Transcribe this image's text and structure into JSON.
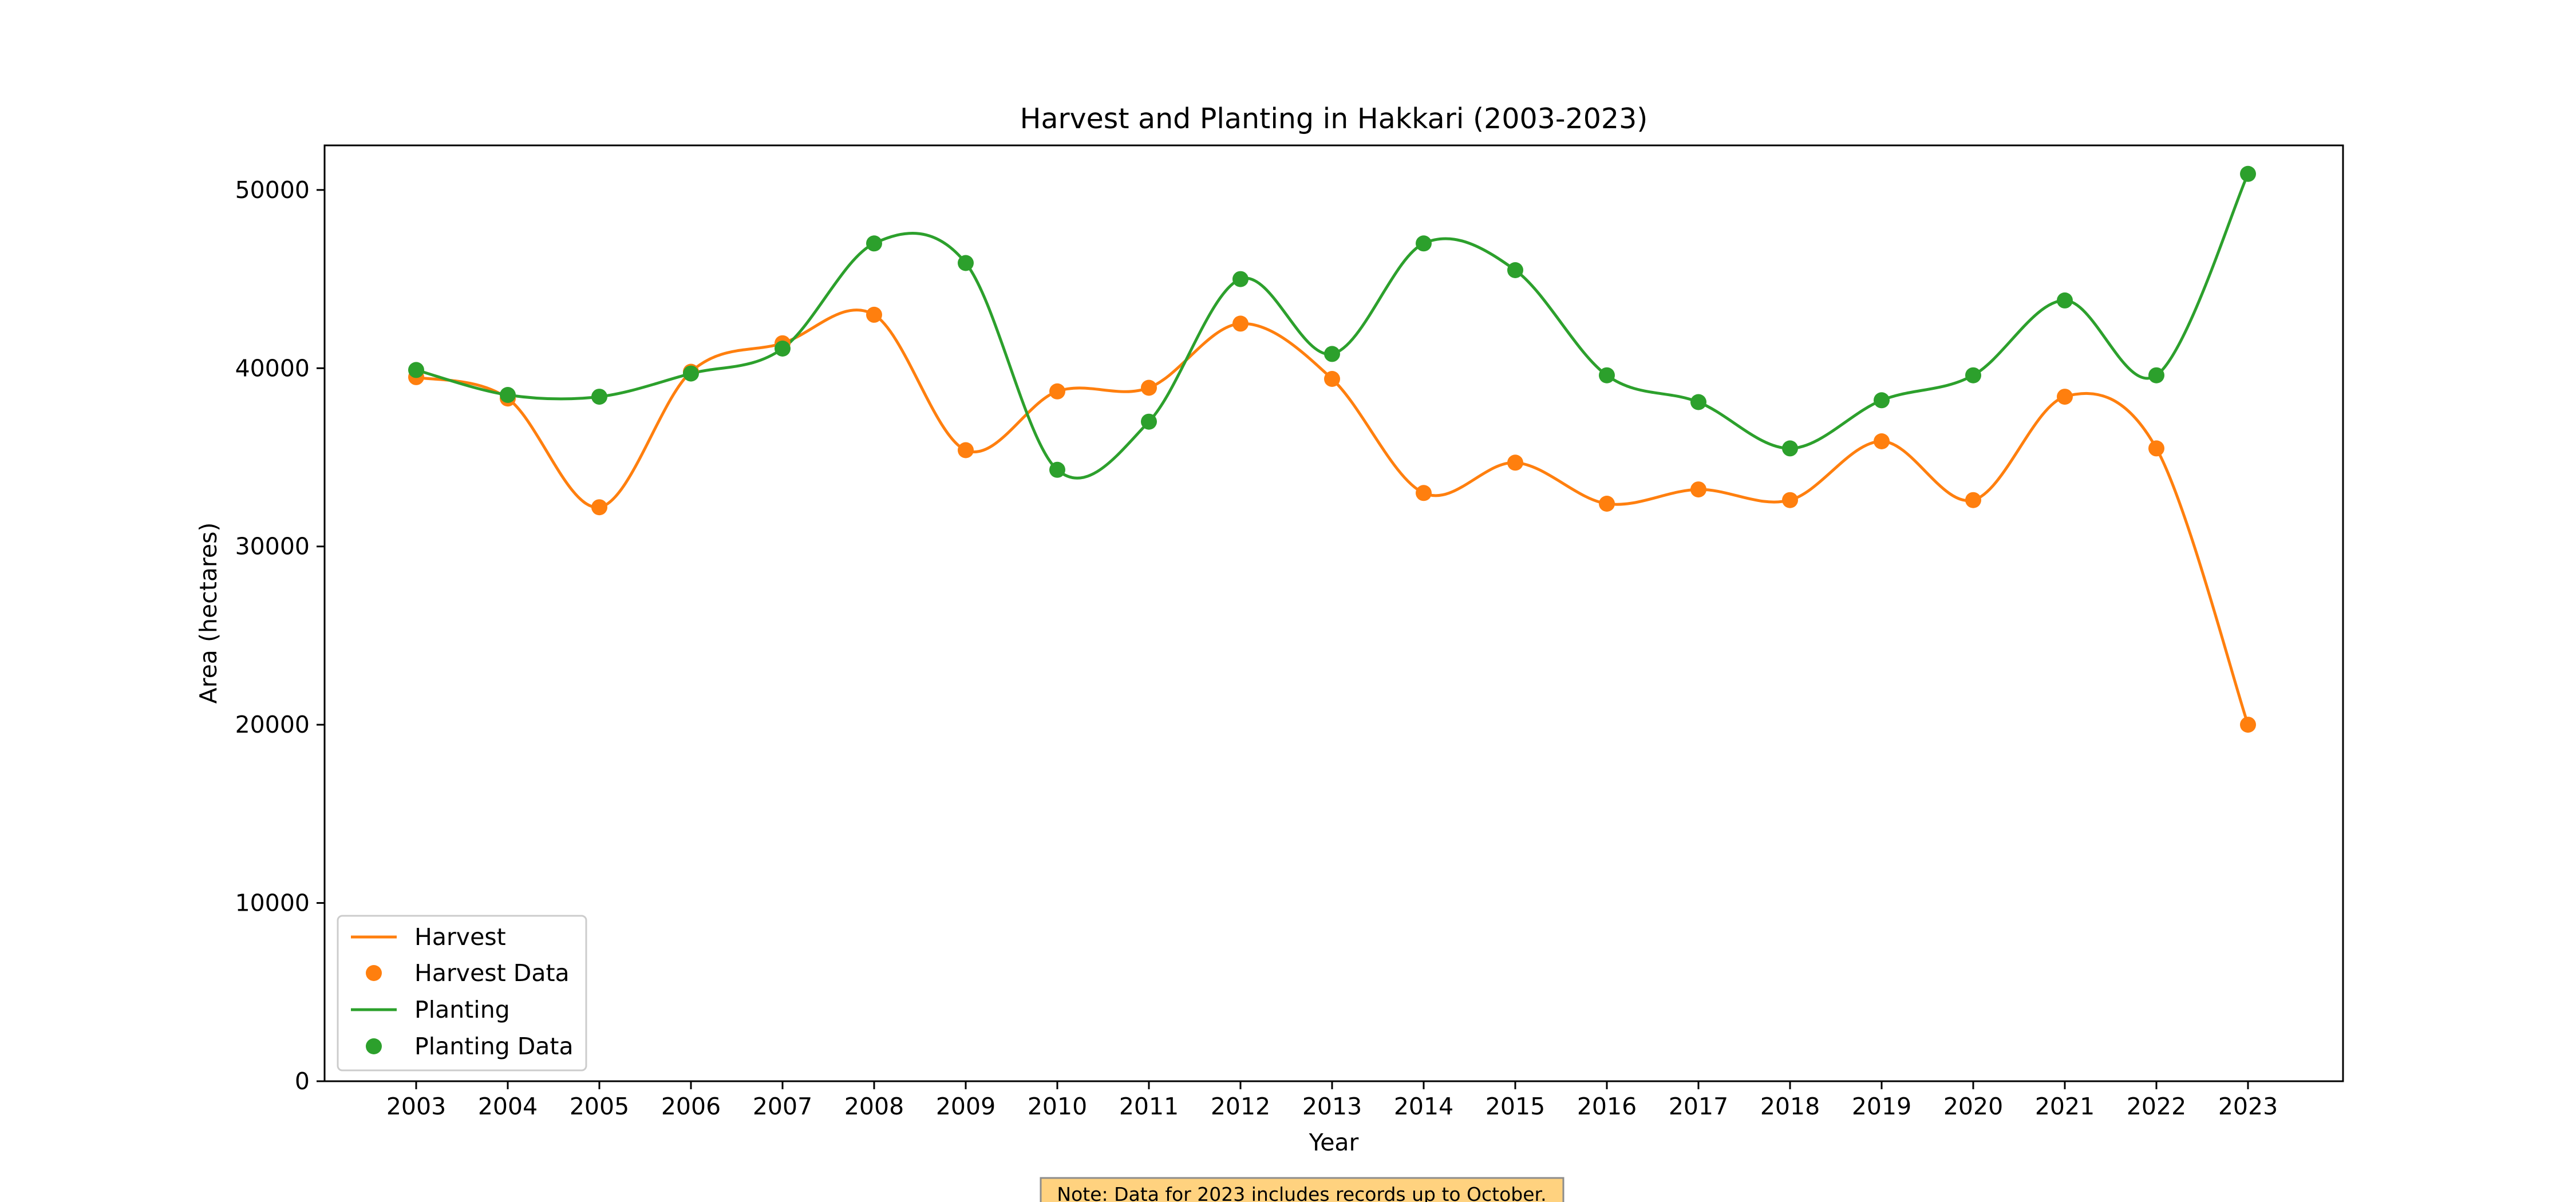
{
  "chart_data": {
    "type": "line",
    "title": "Harvest and Planting in Hakkari (2003-2023)",
    "xlabel": "Year",
    "ylabel": "Area (hectares)",
    "x": [
      2003,
      2004,
      2005,
      2006,
      2007,
      2008,
      2009,
      2010,
      2011,
      2012,
      2013,
      2014,
      2015,
      2016,
      2017,
      2018,
      2019,
      2020,
      2021,
      2022,
      2023
    ],
    "ylim": [
      0,
      52500
    ],
    "yticks": [
      0,
      10000,
      20000,
      30000,
      40000,
      50000
    ],
    "grid": false,
    "legend_position": "lower-left",
    "series": [
      {
        "name": "Harvest",
        "marker_label": "Harvest Data",
        "color": "#ff7f0e",
        "values": [
          39500,
          38300,
          32200,
          39800,
          41400,
          43000,
          35400,
          38700,
          38900,
          42500,
          39400,
          33000,
          34700,
          32400,
          33200,
          32600,
          35900,
          32600,
          38400,
          35500,
          20000
        ]
      },
      {
        "name": "Planting",
        "marker_label": "Planting Data",
        "color": "#2ca02c",
        "values": [
          39900,
          38500,
          38400,
          39700,
          41100,
          47000,
          45900,
          34300,
          37000,
          45000,
          40800,
          47000,
          45500,
          39600,
          38100,
          35500,
          38200,
          39600,
          43800,
          39600,
          50900
        ]
      }
    ],
    "note": "Note: Data for 2023 includes records up to October.",
    "note_background": "#ffd27f"
  }
}
